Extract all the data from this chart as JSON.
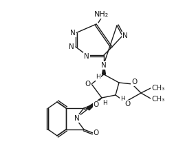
{
  "figsize": [
    2.69,
    2.41
  ],
  "dpi": 100,
  "background": "#ffffff",
  "line_color": "#1a1a1a",
  "line_width": 1.0,
  "font_size": 7.5,
  "xlim": [
    0,
    269
  ],
  "ylim": [
    0,
    241
  ]
}
